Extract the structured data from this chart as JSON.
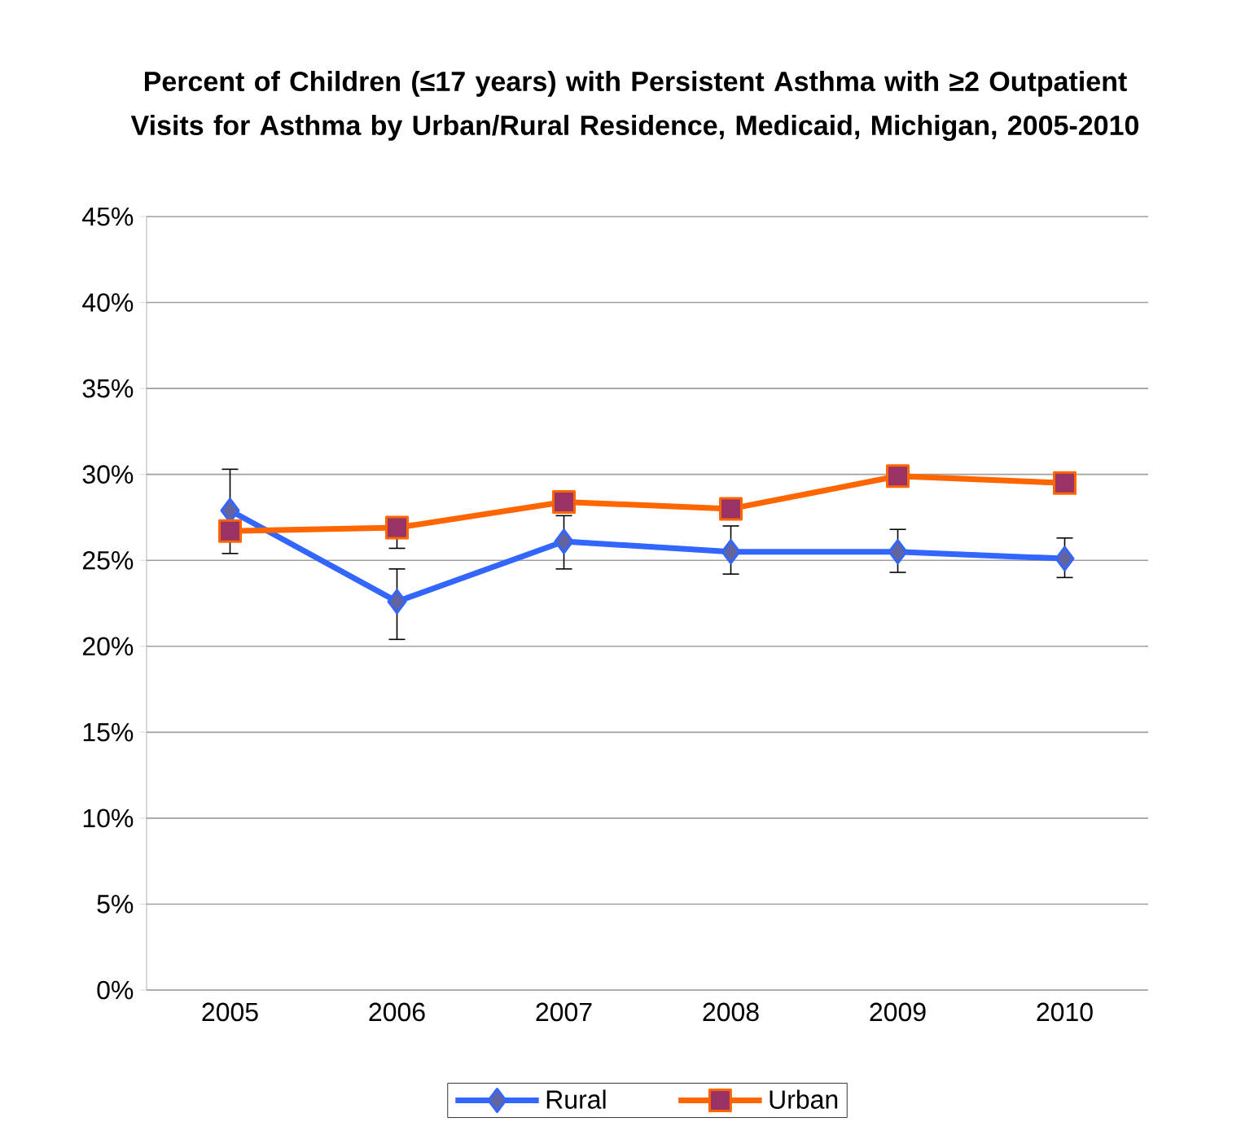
{
  "chart_data": {
    "type": "line",
    "title": "Percent of Children (≤17 years) with Persistent Asthma with ≥2 Outpatient Visits for Asthma by Urban/Rural Residence, Medicaid, Michigan, 2005-2010",
    "categories": [
      "2005",
      "2006",
      "2007",
      "2008",
      "2009",
      "2010"
    ],
    "series": [
      {
        "name": "Rural",
        "color": "#3366ff",
        "marker": "diamond",
        "values": [
          27.9,
          22.6,
          26.1,
          25.5,
          25.5,
          25.1
        ],
        "errors": [
          [
            25.4,
            30.3
          ],
          [
            20.4,
            24.5
          ],
          [
            24.5,
            27.6
          ],
          [
            24.2,
            27.0
          ],
          [
            24.3,
            26.8
          ],
          [
            24.0,
            26.3
          ]
        ]
      },
      {
        "name": "Urban",
        "color": "#ff6600",
        "marker": "square",
        "values": [
          26.7,
          26.9,
          28.4,
          28.0,
          29.9,
          29.5
        ],
        "errors": [
          null,
          [
            25.7,
            27.5
          ],
          null,
          null,
          null,
          null
        ]
      }
    ],
    "ylim": [
      0,
      45
    ],
    "yticks": [
      {
        "value": 0,
        "label": "0%"
      },
      {
        "value": 5,
        "label": "5%"
      },
      {
        "value": 10,
        "label": "10%"
      },
      {
        "value": 15,
        "label": "15%"
      },
      {
        "value": 20,
        "label": "20%"
      },
      {
        "value": 25,
        "label": "25%"
      },
      {
        "value": 30,
        "label": "30%"
      },
      {
        "value": 35,
        "label": "35%"
      },
      {
        "value": 40,
        "label": "40%"
      },
      {
        "value": 45,
        "label": "45%"
      }
    ],
    "grid": "y",
    "legend": "bottom"
  }
}
